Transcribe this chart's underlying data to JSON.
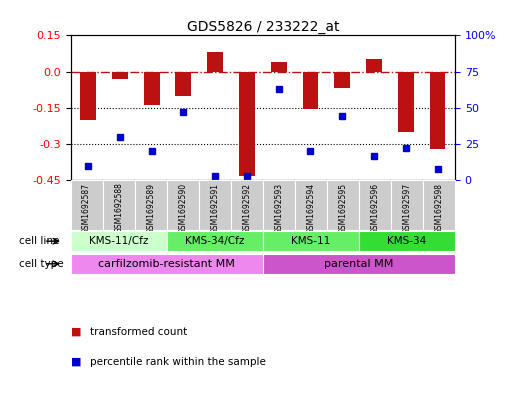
{
  "title": "GDS5826 / 233222_at",
  "samples": [
    "GSM1692587",
    "GSM1692588",
    "GSM1692589",
    "GSM1692590",
    "GSM1692591",
    "GSM1692592",
    "GSM1692593",
    "GSM1692594",
    "GSM1692595",
    "GSM1692596",
    "GSM1692597",
    "GSM1692598"
  ],
  "transformed_counts": [
    -0.2,
    -0.03,
    -0.14,
    -0.1,
    0.08,
    -0.435,
    0.04,
    -0.155,
    -0.07,
    0.05,
    -0.25,
    -0.32
  ],
  "percentile_ranks": [
    10,
    30,
    20,
    47,
    3,
    3,
    63,
    20,
    44,
    17,
    22,
    8
  ],
  "ylim_left": [
    -0.45,
    0.15
  ],
  "ylim_right": [
    0,
    100
  ],
  "yticks_left": [
    0.15,
    0.0,
    -0.15,
    -0.3,
    -0.45
  ],
  "yticks_right": [
    100,
    75,
    50,
    25,
    0
  ],
  "dotted_lines": [
    -0.15,
    -0.3
  ],
  "cell_line_groups": [
    {
      "label": "KMS-11/Cfz",
      "start": 0,
      "end": 3,
      "color": "#ccffcc"
    },
    {
      "label": "KMS-34/Cfz",
      "start": 3,
      "end": 6,
      "color": "#66ee66"
    },
    {
      "label": "KMS-11",
      "start": 6,
      "end": 9,
      "color": "#66ee66"
    },
    {
      "label": "KMS-34",
      "start": 9,
      "end": 12,
      "color": "#33dd33"
    }
  ],
  "cell_type_groups": [
    {
      "label": "carfilzomib-resistant MM",
      "start": 0,
      "end": 6,
      "color": "#ee88ee"
    },
    {
      "label": "parental MM",
      "start": 6,
      "end": 12,
      "color": "#cc55cc"
    }
  ],
  "bar_color": "#bb1111",
  "dot_color": "#0000cc",
  "bg_color": "#ffffff",
  "sample_bg": "#cccccc",
  "legend_items": [
    {
      "label": "transformed count",
      "color": "#bb1111"
    },
    {
      "label": "percentile rank within the sample",
      "color": "#0000cc"
    }
  ]
}
